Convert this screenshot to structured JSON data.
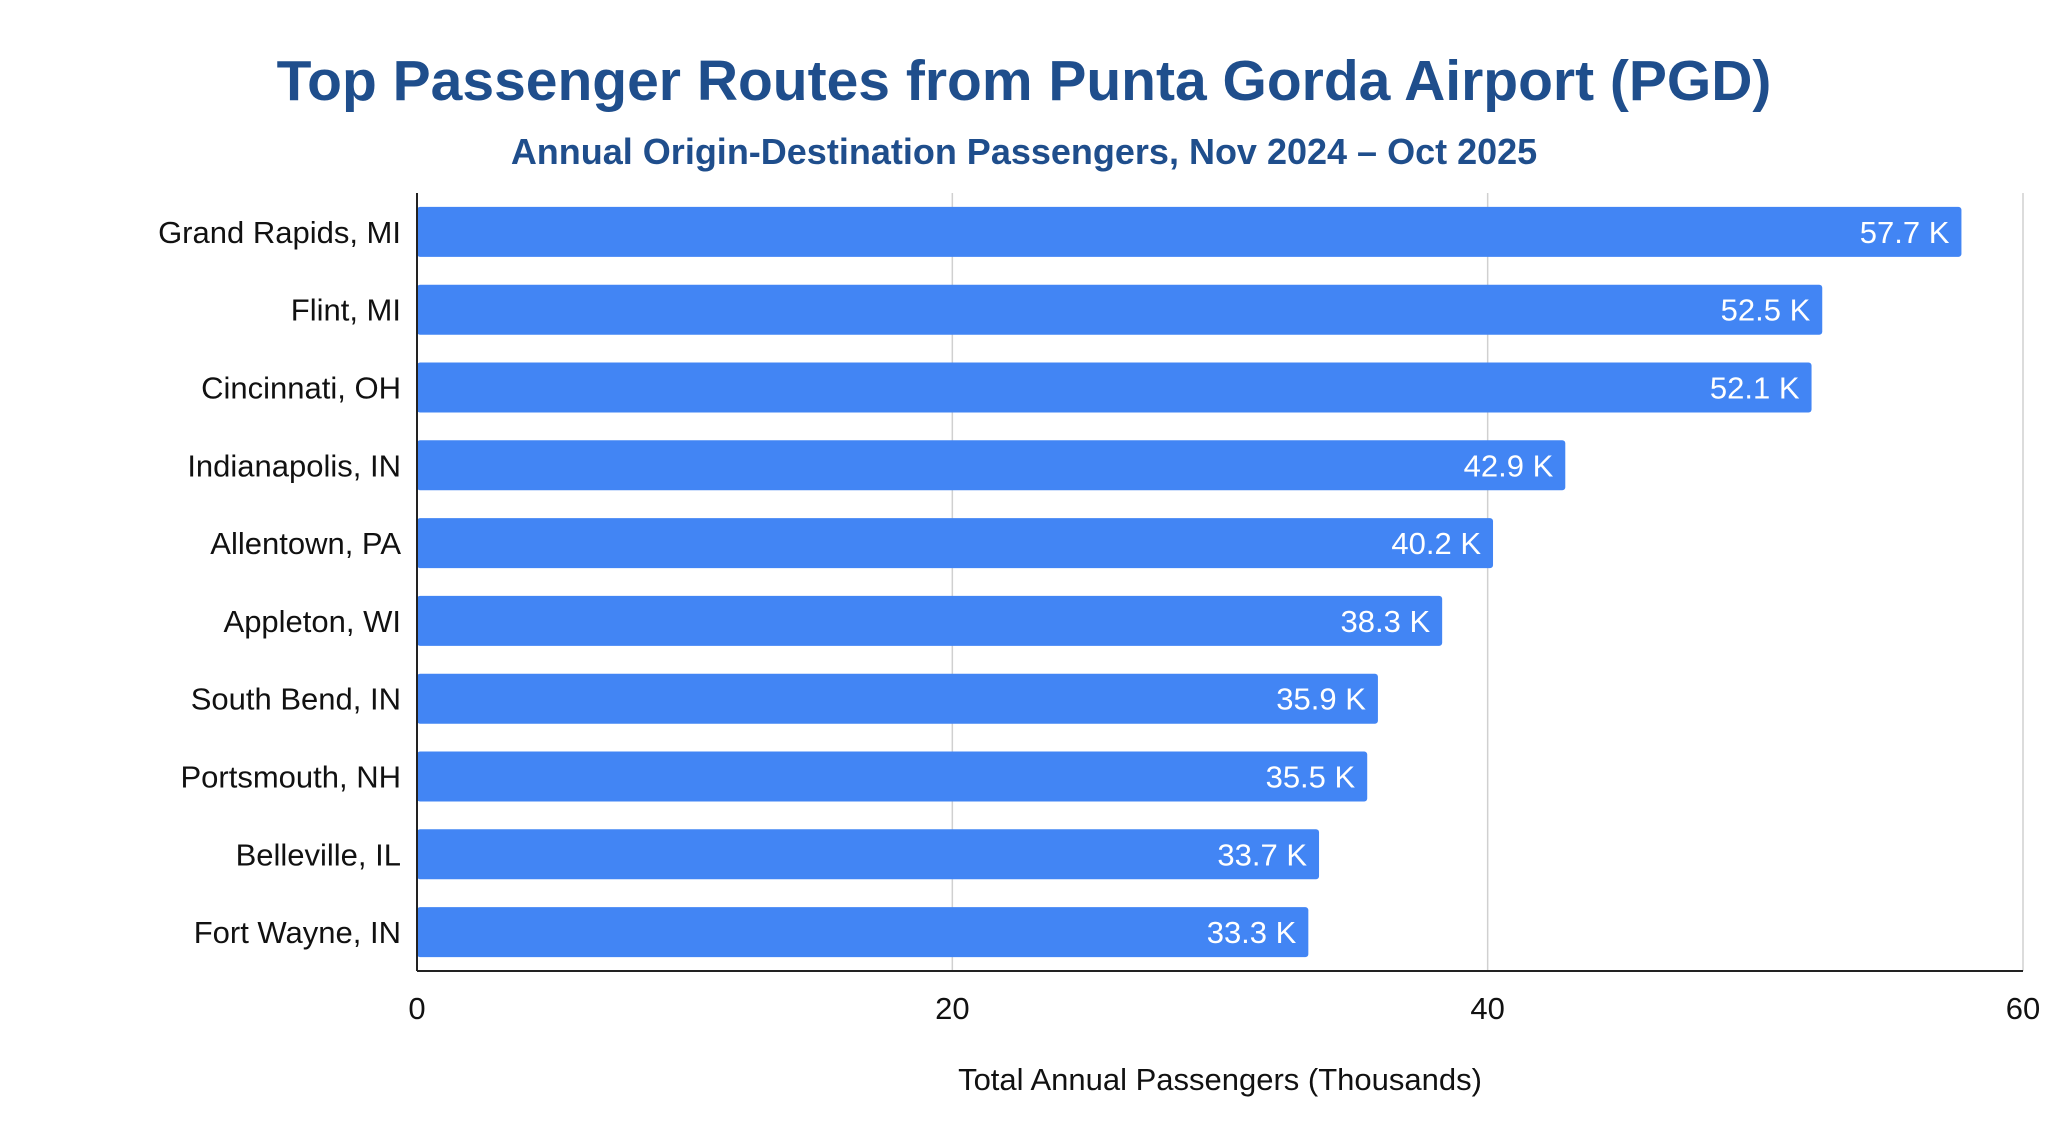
{
  "chart_data": {
    "type": "bar",
    "orientation": "horizontal",
    "title": "Top Passenger Routes from Punta Gorda Airport (PGD)",
    "subtitle": "Annual Origin-Destination Passengers, Nov 2024 – Oct 2025",
    "xlabel": "Total Annual Passengers (Thousands)",
    "ylabel": "",
    "xlim": [
      0,
      60
    ],
    "xticks": [
      "0",
      "20",
      "40",
      "60"
    ],
    "grid": "vertical",
    "legend": "none",
    "bar_color": "#4285f4",
    "categories": [
      "Grand Rapids, MI",
      "Flint, MI",
      "Cincinnati, OH",
      "Indianapolis, IN",
      "Allentown, PA",
      "Appleton, WI",
      "South Bend, IN",
      "Portsmouth, NH",
      "Belleville, IL",
      "Fort Wayne, IN"
    ],
    "values": [
      57.7,
      52.5,
      52.1,
      42.9,
      40.2,
      38.3,
      35.9,
      35.5,
      33.7,
      33.3
    ],
    "data_labels": [
      "57.7 K",
      "52.5 K",
      "52.1 K",
      "42.9 K",
      "40.2 K",
      "38.3 K",
      "35.9 K",
      "35.5 K",
      "33.7 K",
      "33.3 K"
    ]
  }
}
